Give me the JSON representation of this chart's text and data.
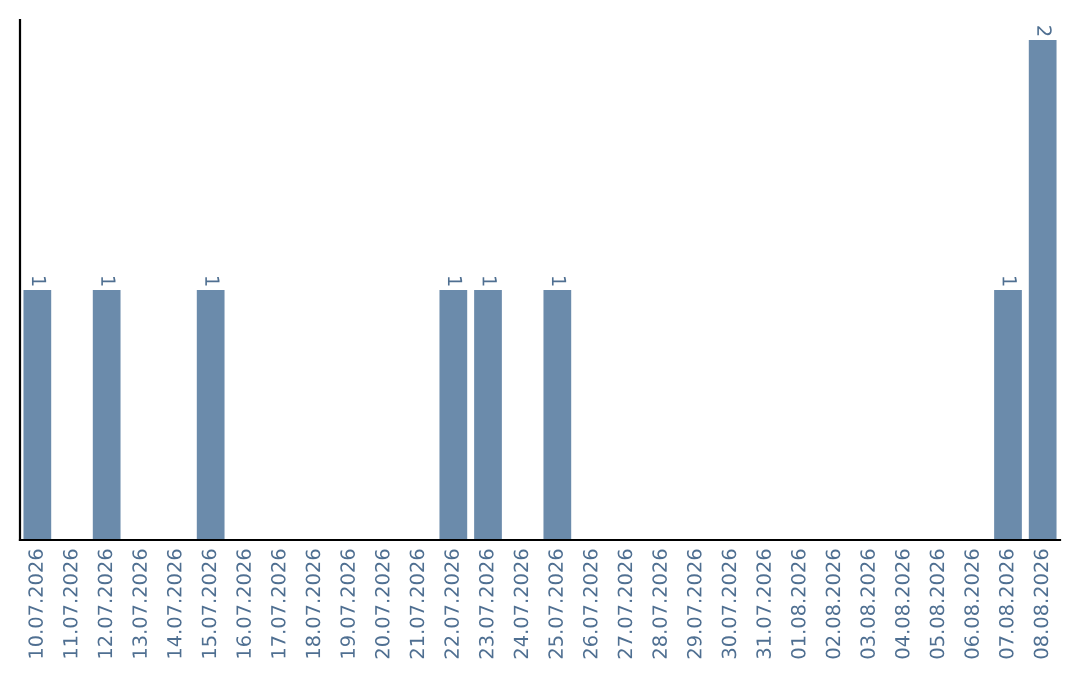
{
  "chart_data": {
    "type": "bar",
    "categories": [
      "10.07.2026",
      "11.07.2026",
      "12.07.2026",
      "13.07.2026",
      "14.07.2026",
      "15.07.2026",
      "16.07.2026",
      "17.07.2026",
      "18.07.2026",
      "19.07.2026",
      "20.07.2026",
      "21.07.2026",
      "22.07.2026",
      "23.07.2026",
      "24.07.2026",
      "25.07.2026",
      "26.07.2026",
      "27.07.2026",
      "28.07.2026",
      "29.07.2026",
      "30.07.2026",
      "31.07.2026",
      "01.08.2026",
      "02.08.2026",
      "03.08.2026",
      "04.08.2026",
      "05.08.2026",
      "06.08.2026",
      "07.08.2026",
      "08.08.2026"
    ],
    "values": [
      1,
      0,
      1,
      0,
      0,
      1,
      0,
      0,
      0,
      0,
      0,
      0,
      1,
      1,
      0,
      1,
      0,
      0,
      0,
      0,
      0,
      0,
      0,
      0,
      0,
      0,
      0,
      0,
      1,
      2
    ],
    "value_labels": [
      "1",
      null,
      "1",
      null,
      null,
      "1",
      null,
      null,
      null,
      null,
      null,
      null,
      "1",
      "1",
      null,
      "1",
      null,
      null,
      null,
      null,
      null,
      null,
      null,
      null,
      null,
      null,
      null,
      null,
      "1",
      "2"
    ],
    "color": "#6b8bab",
    "grid": false,
    "legend": false
  }
}
